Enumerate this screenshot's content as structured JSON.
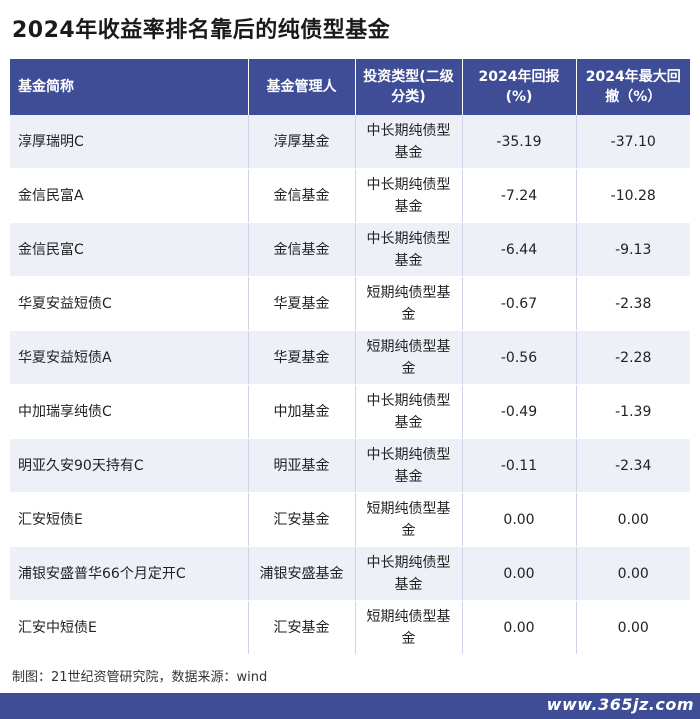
{
  "title": "2024年收益率排名靠后的纯债型基金",
  "table": {
    "headers": [
      "基金简称",
      "基金管理人",
      "投资类型(二级分类)",
      "2024年回报(%)",
      "2024年最大回撤（%）"
    ],
    "rows": [
      [
        "淳厚瑞明C",
        "淳厚基金",
        "中长期纯债型基金",
        "-35.19",
        "-37.10"
      ],
      [
        "金信民富A",
        "金信基金",
        "中长期纯债型基金",
        "-7.24",
        "-10.28"
      ],
      [
        "金信民富C",
        "金信基金",
        "中长期纯债型基金",
        "-6.44",
        "-9.13"
      ],
      [
        "华夏安益短债C",
        "华夏基金",
        "短期纯债型基金",
        "-0.67",
        "-2.38"
      ],
      [
        "华夏安益短债A",
        "华夏基金",
        "短期纯债型基金",
        "-0.56",
        "-2.28"
      ],
      [
        "中加瑞享纯债C",
        "中加基金",
        "中长期纯债型基金",
        "-0.49",
        "-1.39"
      ],
      [
        "明亚久安90天持有C",
        "明亚基金",
        "中长期纯债型基金",
        "-0.11",
        "-2.34"
      ],
      [
        "汇安短债E",
        "汇安基金",
        "短期纯债型基金",
        "0.00",
        "0.00"
      ],
      [
        "浦银安盛普华66个月定开C",
        "浦银安盛基金",
        "中长期纯债型基金",
        "0.00",
        "0.00"
      ],
      [
        "汇安中短债E",
        "汇安基金",
        "短期纯债型基金",
        "0.00",
        "0.00"
      ]
    ]
  },
  "footer": "制图：21世纪资管研究院，数据来源：wind",
  "watermark": "www.365jz.com",
  "colors": {
    "header_bg": "#3f4c96",
    "stripe_bg": "#eef0f8"
  }
}
